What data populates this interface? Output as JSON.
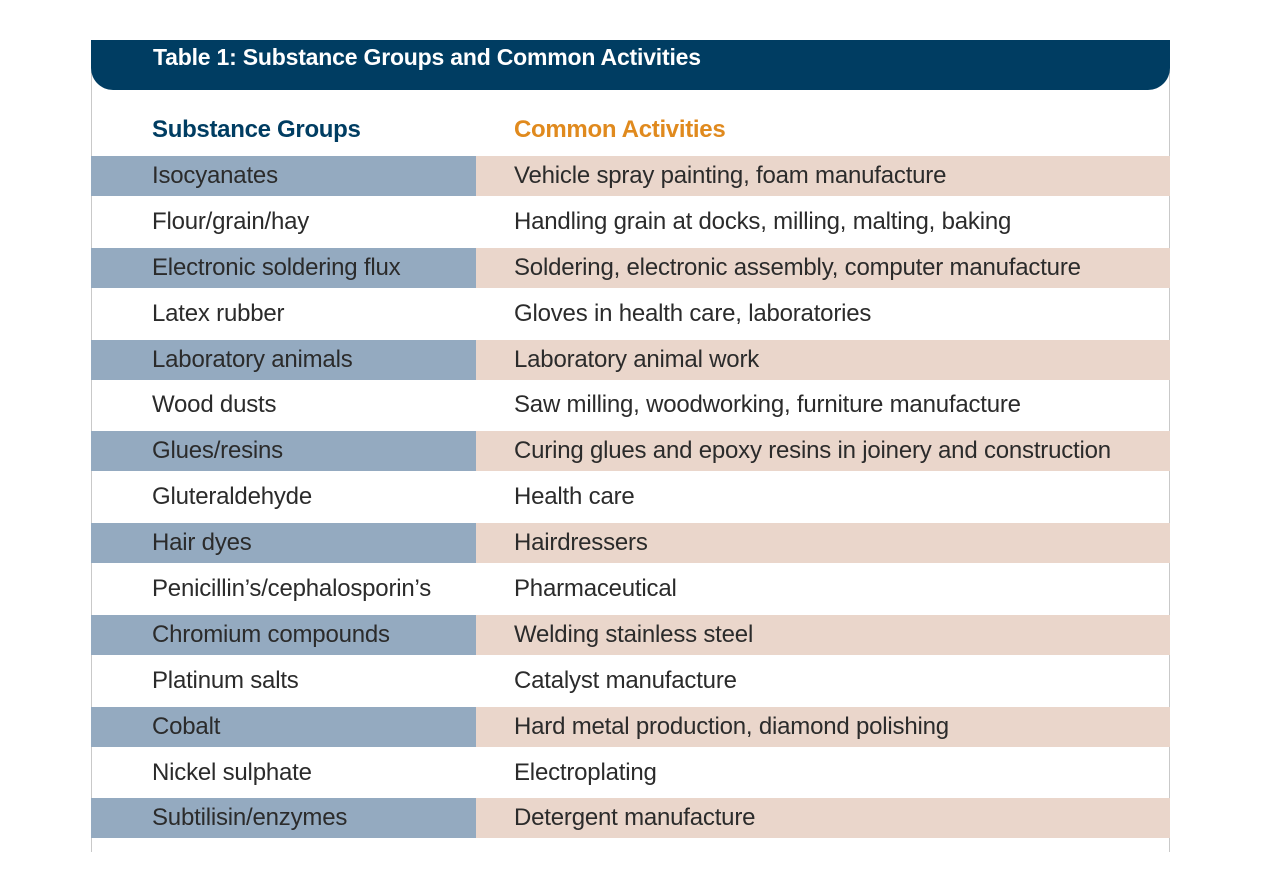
{
  "table": {
    "title": "Table 1: Substance Groups and Common Activities",
    "headers": {
      "left": "Substance Groups",
      "right": "Common Activities"
    },
    "colors": {
      "title_bar": "#003d62",
      "header_left": "#003d62",
      "header_right": "#e08a1e",
      "shade_left": "#94aac0",
      "shade_right": "#ead6cb"
    },
    "rows": [
      {
        "substance": "Isocyanates",
        "activity": "Vehicle spray painting, foam manufacture"
      },
      {
        "substance": "Flour/grain/hay",
        "activity": "Handling grain at docks, milling, malting, baking"
      },
      {
        "substance": "Electronic soldering flux",
        "activity": "Soldering, electronic assembly, computer manufacture"
      },
      {
        "substance": "Latex rubber",
        "activity": "Gloves in health care, laboratories"
      },
      {
        "substance": "Laboratory animals",
        "activity": "Laboratory animal work"
      },
      {
        "substance": "Wood dusts",
        "activity": "Saw milling, woodworking, furniture manufacture"
      },
      {
        "substance": "Glues/resins",
        "activity": "Curing glues and epoxy resins in joinery and construction"
      },
      {
        "substance": "Gluteraldehyde",
        "activity": "Health care"
      },
      {
        "substance": "Hair dyes",
        "activity": "Hairdressers"
      },
      {
        "substance": "Penicillin’s/cephalosporin’s",
        "activity": "Pharmaceutical"
      },
      {
        "substance": "Chromium compounds",
        "activity": "Welding stainless steel"
      },
      {
        "substance": "Platinum salts",
        "activity": "Catalyst manufacture"
      },
      {
        "substance": "Cobalt",
        "activity": "Hard metal production, diamond polishing"
      },
      {
        "substance": "Nickel sulphate",
        "activity": "Electroplating"
      },
      {
        "substance": "Subtilisin/enzymes",
        "activity": "Detergent manufacture"
      }
    ]
  }
}
